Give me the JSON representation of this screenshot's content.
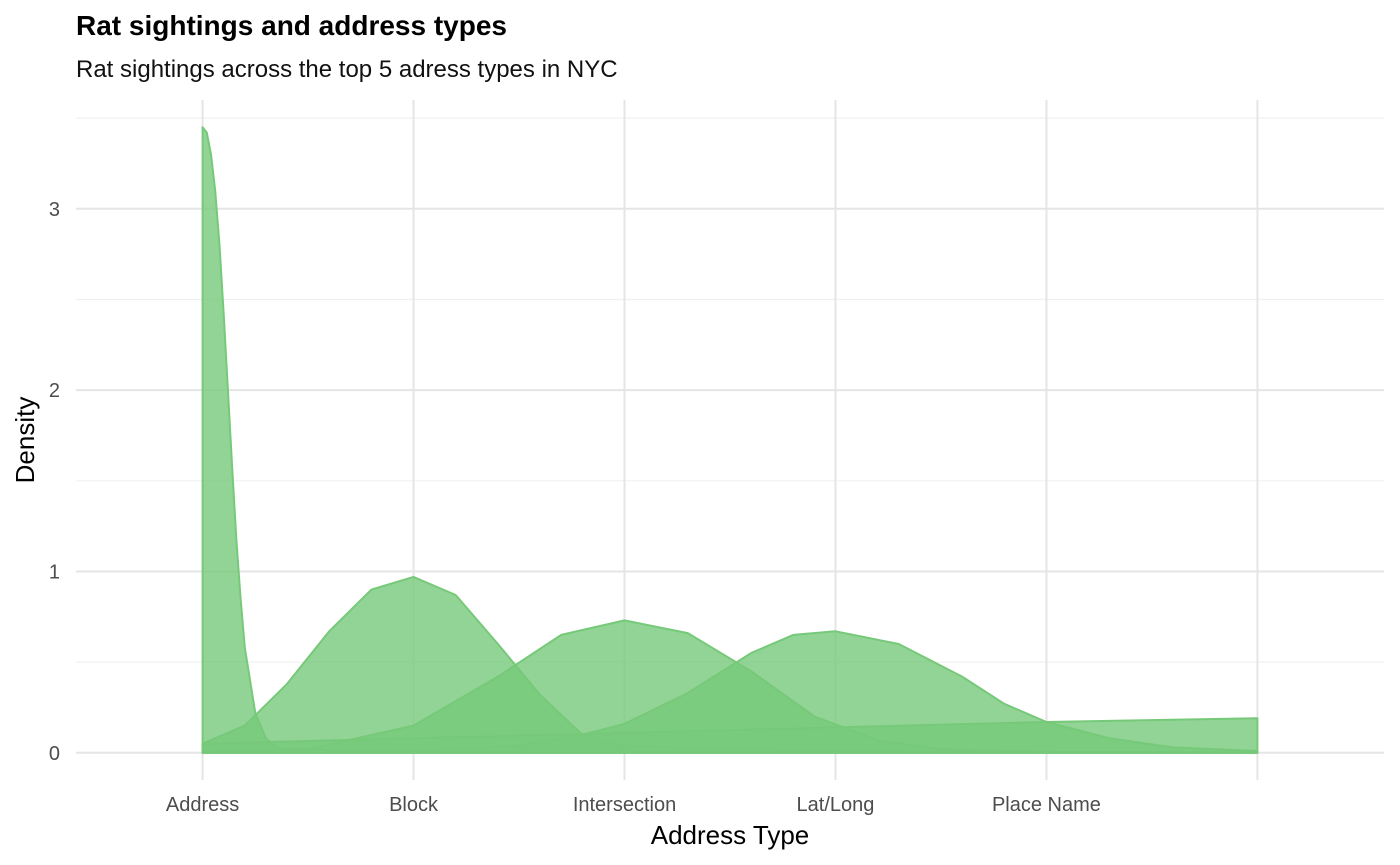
{
  "title": "Rat sightings and address types",
  "subtitle": "Rat sightings across the top 5 adress types in NYC",
  "colors": {
    "fill": "#77c97a",
    "fill_opacity": 0.8,
    "grid_major": "#e5e5e5",
    "grid_minor": "#f0f0f0",
    "tick_text": "#4d4d4d"
  },
  "chart_data": {
    "type": "area",
    "xlabel": "Address Type",
    "ylabel": "Density",
    "categories": [
      "Address",
      "Block",
      "Intersection",
      "Lat/Long",
      "Place Name"
    ],
    "x_tick_positions": [
      1,
      2,
      3,
      4,
      5
    ],
    "xlim": [
      0.4,
      6.6
    ],
    "ylim": [
      -0.15,
      3.6
    ],
    "y_ticks": [
      0,
      1,
      2,
      3
    ],
    "grid": true,
    "legend": "none",
    "series": [
      {
        "x": [
          1.0,
          1.02,
          1.04,
          1.06,
          1.08,
          1.1,
          1.12,
          1.14,
          1.16,
          1.18,
          1.2,
          1.25,
          1.3,
          1.35,
          1.4,
          1.5,
          2.0,
          3.0,
          4.0,
          5.0,
          6.0
        ],
        "y": [
          3.45,
          3.42,
          3.3,
          3.1,
          2.8,
          2.42,
          2.0,
          1.58,
          1.18,
          0.85,
          0.58,
          0.22,
          0.08,
          0.03,
          0.02,
          0.015,
          0.01,
          0.005,
          0.005,
          0.005,
          0.005
        ]
      },
      {
        "x": [
          1.0,
          1.2,
          1.4,
          1.6,
          1.8,
          2.0,
          2.2,
          2.4,
          2.6,
          2.8,
          3.0,
          3.5,
          4.0,
          5.0,
          6.0
        ],
        "y": [
          0.05,
          0.15,
          0.38,
          0.67,
          0.9,
          0.97,
          0.87,
          0.6,
          0.32,
          0.1,
          0.04,
          0.02,
          0.01,
          0.005,
          0.005
        ]
      },
      {
        "x": [
          1.0,
          1.5,
          2.0,
          2.4,
          2.7,
          3.0,
          3.3,
          3.6,
          3.9,
          4.2,
          4.5,
          5.0,
          5.5,
          6.0
        ],
        "y": [
          0.005,
          0.02,
          0.15,
          0.42,
          0.65,
          0.73,
          0.66,
          0.45,
          0.2,
          0.07,
          0.02,
          0.005,
          0.002,
          0.0
        ]
      },
      {
        "x": [
          1.0,
          2.0,
          2.5,
          2.8,
          3.0,
          3.3,
          3.6,
          3.8,
          4.0,
          4.3,
          4.6,
          4.8,
          5.0,
          5.3,
          5.6,
          6.0
        ],
        "y": [
          0.0,
          0.005,
          0.04,
          0.1,
          0.16,
          0.33,
          0.55,
          0.65,
          0.67,
          0.6,
          0.42,
          0.27,
          0.17,
          0.08,
          0.03,
          0.01
        ]
      },
      {
        "x": [
          1.0,
          2.0,
          3.0,
          4.0,
          5.0,
          6.0
        ],
        "y": [
          0.05,
          0.08,
          0.11,
          0.14,
          0.17,
          0.19
        ]
      }
    ]
  }
}
